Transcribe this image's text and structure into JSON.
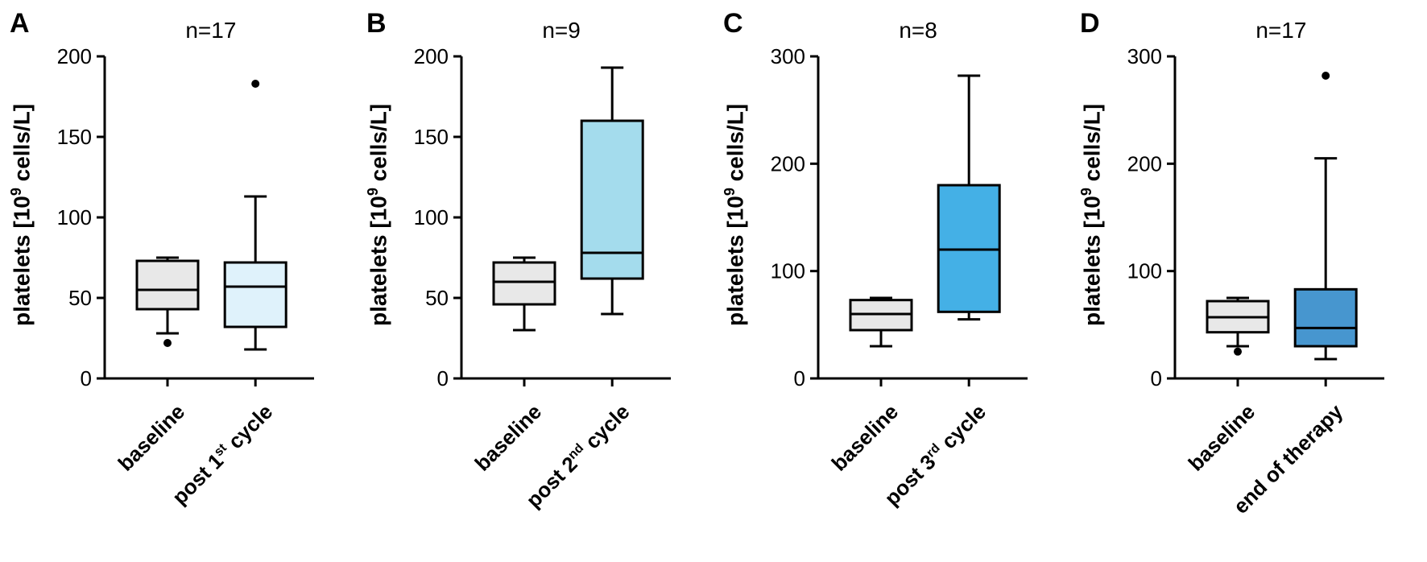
{
  "figure": {
    "background_color": "#ffffff",
    "axis_color": "#000000",
    "axis_width": 3,
    "baseline_fill": "#e8e8e8",
    "stroke_color": "#000000",
    "box_stroke_width": 3,
    "whisker_width": 3,
    "outlier_radius": 5,
    "font_family": "Arial",
    "panel_label_fontsize": 34,
    "n_label_fontsize": 28,
    "tick_label_fontsize": 26,
    "axis_title_fontsize": 28,
    "x_label_fontsize": 26,
    "y_axis_title_html": "platelets [10<sup>9</sup> cells/L]",
    "panels": [
      {
        "id": "A",
        "n_label": "n=17",
        "y_min": 0,
        "y_max": 200,
        "y_ticks": [
          0,
          50,
          100,
          150,
          200
        ],
        "treatment_fill": "#dff2fb",
        "x_categories": [
          "baseline",
          "post 1<sup>st</sup> cycle"
        ],
        "boxes": [
          {
            "fill_key": "baseline",
            "q1": 43,
            "median": 55,
            "q3": 73,
            "whisker_low": 28,
            "whisker_high": 75,
            "outliers": [
              22
            ]
          },
          {
            "fill_key": "treatment",
            "q1": 32,
            "median": 57,
            "q3": 72,
            "whisker_low": 18,
            "whisker_high": 113,
            "outliers": [
              183
            ]
          }
        ]
      },
      {
        "id": "B",
        "n_label": "n=9",
        "y_min": 0,
        "y_max": 200,
        "y_ticks": [
          0,
          50,
          100,
          150,
          200
        ],
        "treatment_fill": "#a4dced",
        "x_categories": [
          "baseline",
          "post 2<sup>nd</sup> cycle"
        ],
        "boxes": [
          {
            "fill_key": "baseline",
            "q1": 46,
            "median": 60,
            "q3": 72,
            "whisker_low": 30,
            "whisker_high": 75,
            "outliers": []
          },
          {
            "fill_key": "treatment",
            "q1": 62,
            "median": 78,
            "q3": 160,
            "whisker_low": 40,
            "whisker_high": 193,
            "outliers": []
          }
        ]
      },
      {
        "id": "C",
        "n_label": "n=8",
        "y_min": 0,
        "y_max": 300,
        "y_ticks": [
          0,
          100,
          200,
          300
        ],
        "treatment_fill": "#44b0e6",
        "x_categories": [
          "baseline",
          "post 3<sup>rd</sup> cycle"
        ],
        "boxes": [
          {
            "fill_key": "baseline",
            "q1": 45,
            "median": 60,
            "q3": 73,
            "whisker_low": 30,
            "whisker_high": 75,
            "outliers": []
          },
          {
            "fill_key": "treatment",
            "q1": 62,
            "median": 120,
            "q3": 180,
            "whisker_low": 55,
            "whisker_high": 282,
            "outliers": []
          }
        ]
      },
      {
        "id": "D",
        "n_label": "n=17",
        "y_min": 0,
        "y_max": 300,
        "y_ticks": [
          0,
          100,
          200,
          300
        ],
        "treatment_fill": "#4796cf",
        "x_categories": [
          "baseline",
          "end of therapy"
        ],
        "boxes": [
          {
            "fill_key": "baseline",
            "q1": 43,
            "median": 57,
            "q3": 72,
            "whisker_low": 30,
            "whisker_high": 75,
            "outliers": [
              25
            ]
          },
          {
            "fill_key": "treatment",
            "q1": 30,
            "median": 47,
            "q3": 83,
            "whisker_low": 18,
            "whisker_high": 205,
            "outliers": [
              282
            ]
          }
        ]
      }
    ]
  }
}
